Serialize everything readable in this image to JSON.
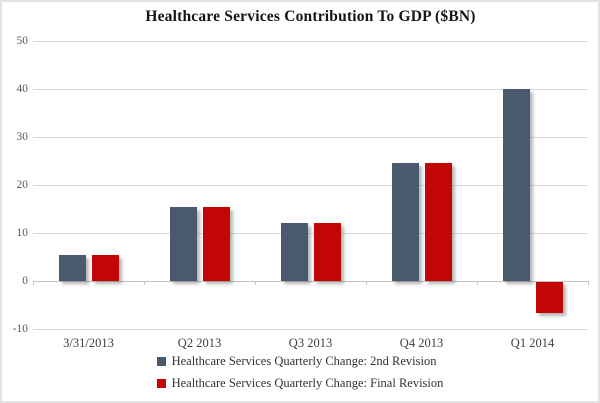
{
  "chart_data": {
    "type": "bar",
    "title": "Healthcare Services Contribution To GDP ($BN)",
    "categories": [
      "3/31/2013",
      "Q2 2013",
      "Q3 2013",
      "Q4 2013",
      "Q1 2014"
    ],
    "series": [
      {
        "name": "Healthcare Services Quarterly Change: 2nd Revision",
        "color": "#4a5a6d",
        "values": [
          5.5,
          15.5,
          12,
          24.5,
          40
        ]
      },
      {
        "name": "Healthcare Services Quarterly Change: Final Revision",
        "color": "#c20606",
        "values": [
          5.5,
          15.5,
          12,
          24.5,
          -6.4
        ]
      }
    ],
    "ylim": [
      -10,
      50
    ],
    "ytick_step": 10,
    "ytick_labels": [
      "50",
      "40",
      "30",
      "20",
      "10",
      "0",
      "-10"
    ],
    "grid": true,
    "legend_position": "bottom",
    "gridline_color": "#d9d9d9",
    "axis_color": "#c0c0c0"
  }
}
